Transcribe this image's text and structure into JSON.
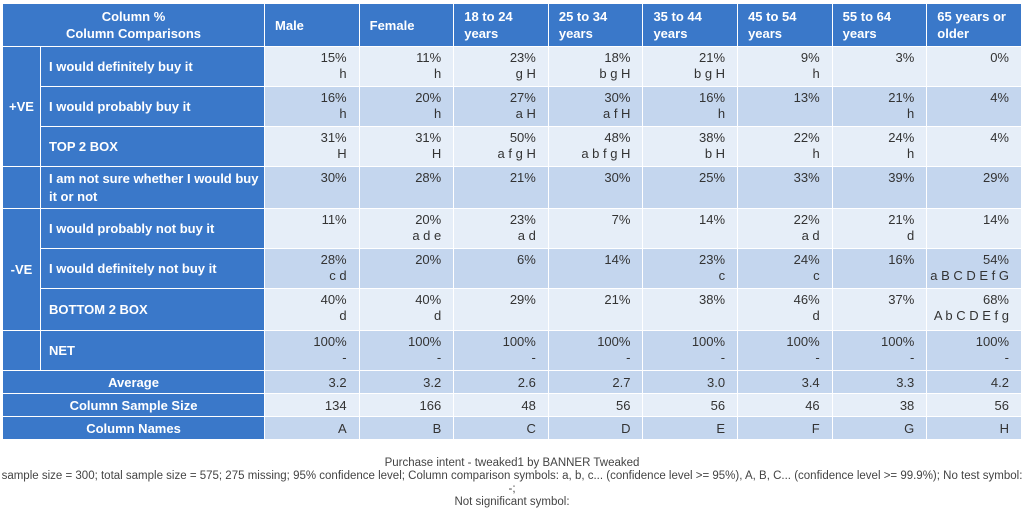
{
  "header": {
    "corner": "Column %\nColumn Comparisons",
    "columns": [
      "Male",
      "Female",
      "18 to 24 years",
      "25 to 34 years",
      "35 to 44 years",
      "45 to 54 years",
      "55 to 64 years",
      "65 years or older"
    ]
  },
  "groups": {
    "pos": "+VE",
    "neg": "-VE"
  },
  "rows": [
    {
      "label": "I would definitely buy it",
      "cells": [
        [
          "15%",
          "h"
        ],
        [
          "11%",
          "h"
        ],
        [
          "23%",
          "g H"
        ],
        [
          "18%",
          "b g H"
        ],
        [
          "21%",
          "b g H"
        ],
        [
          "9%",
          "h"
        ],
        [
          "3%",
          ""
        ],
        [
          "0%",
          ""
        ]
      ]
    },
    {
      "label": "I would probably buy it",
      "cells": [
        [
          "16%",
          "h"
        ],
        [
          "20%",
          "h"
        ],
        [
          "27%",
          "a H"
        ],
        [
          "30%",
          "a f H"
        ],
        [
          "16%",
          "h"
        ],
        [
          "13%",
          ""
        ],
        [
          "21%",
          "h"
        ],
        [
          "4%",
          ""
        ]
      ]
    },
    {
      "label": "TOP 2 BOX",
      "cells": [
        [
          "31%",
          "H"
        ],
        [
          "31%",
          "H"
        ],
        [
          "50%",
          "a f g H"
        ],
        [
          "48%",
          "a b f g H"
        ],
        [
          "38%",
          "b H"
        ],
        [
          "22%",
          "h"
        ],
        [
          "24%",
          "h"
        ],
        [
          "4%",
          ""
        ]
      ]
    },
    {
      "label": "I am not sure whether I would buy it or not",
      "cells": [
        [
          "30%",
          ""
        ],
        [
          "28%",
          ""
        ],
        [
          "21%",
          ""
        ],
        [
          "30%",
          ""
        ],
        [
          "25%",
          ""
        ],
        [
          "33%",
          ""
        ],
        [
          "39%",
          ""
        ],
        [
          "29%",
          ""
        ]
      ]
    },
    {
      "label": "I would probably not buy it",
      "cells": [
        [
          "11%",
          ""
        ],
        [
          "20%",
          "a d e"
        ],
        [
          "23%",
          "a d"
        ],
        [
          "7%",
          ""
        ],
        [
          "14%",
          ""
        ],
        [
          "22%",
          "a d"
        ],
        [
          "21%",
          "d"
        ],
        [
          "14%",
          ""
        ]
      ]
    },
    {
      "label": "I would definitely not buy it",
      "cells": [
        [
          "28%",
          "c d"
        ],
        [
          "20%",
          ""
        ],
        [
          "6%",
          ""
        ],
        [
          "14%",
          ""
        ],
        [
          "23%",
          "c"
        ],
        [
          "24%",
          "c"
        ],
        [
          "16%",
          ""
        ],
        [
          "54%",
          "a B C D E f G"
        ]
      ]
    },
    {
      "label": "BOTTOM 2 BOX",
      "cells": [
        [
          "40%",
          "d"
        ],
        [
          "40%",
          "d"
        ],
        [
          "29%",
          ""
        ],
        [
          "21%",
          ""
        ],
        [
          "38%",
          ""
        ],
        [
          "46%",
          "d"
        ],
        [
          "37%",
          ""
        ],
        [
          "68%",
          "A b C D E f g"
        ]
      ]
    },
    {
      "label": "NET",
      "cells": [
        [
          "100%",
          "-"
        ],
        [
          "100%",
          "-"
        ],
        [
          "100%",
          "-"
        ],
        [
          "100%",
          "-"
        ],
        [
          "100%",
          "-"
        ],
        [
          "100%",
          "-"
        ],
        [
          "100%",
          "-"
        ],
        [
          "100%",
          "-"
        ]
      ]
    }
  ],
  "average": {
    "label": "Average",
    "values": [
      "3.2",
      "3.2",
      "2.6",
      "2.7",
      "3.0",
      "3.4",
      "3.3",
      "4.2"
    ]
  },
  "sample_size": {
    "label": "Column Sample Size",
    "values": [
      "134",
      "166",
      "48",
      "56",
      "56",
      "46",
      "38",
      "56"
    ]
  },
  "column_names": {
    "label": "Column Names",
    "values": [
      "A",
      "B",
      "C",
      "D",
      "E",
      "F",
      "G",
      "H"
    ]
  },
  "footer": {
    "title": "Purchase intent - tweaked1 by BANNER Tweaked",
    "line1": "sample size = 300; total sample size = 575; 275 missing; 95% confidence level; Column comparison symbols: a, b, c... (confidence level >= 95%), A, B, C... (confidence level >= 99.9%); No test symbol: -;",
    "line2": "Not significant symbol:"
  },
  "colors": {
    "header_blue": "#3a78c9",
    "row_light": "#e6eef8",
    "row_dark": "#c4d6ee"
  }
}
